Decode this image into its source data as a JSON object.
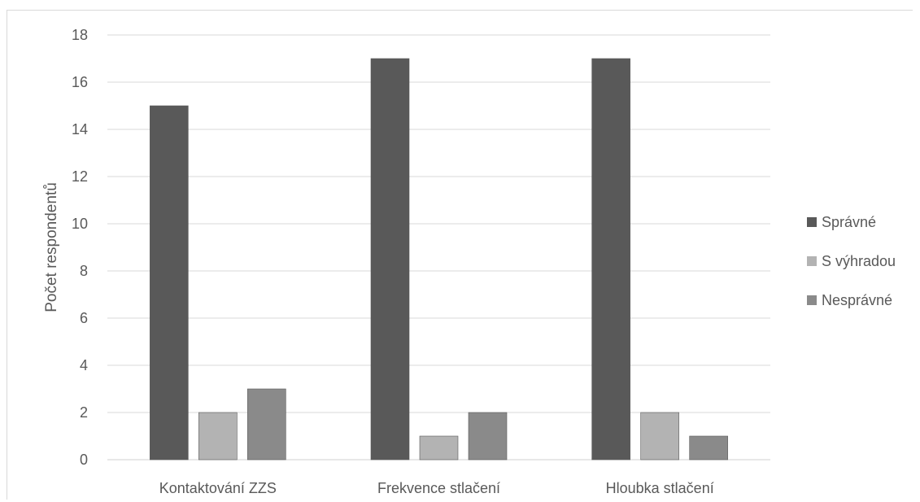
{
  "chart_data": {
    "type": "bar",
    "title": "",
    "xlabel": "",
    "ylabel": "Počet respondentů",
    "ylim": [
      0,
      18
    ],
    "yticks": [
      0,
      2,
      4,
      6,
      8,
      10,
      12,
      14,
      16,
      18
    ],
    "grid": true,
    "legend_position": "right",
    "categories": [
      "Kontaktování ZZS",
      "Frekvence stlačení",
      "Hloubka stlačení"
    ],
    "series": [
      {
        "name": "Správné",
        "values": [
          15,
          17,
          17
        ],
        "color": "#595959"
      },
      {
        "name": "S výhradou",
        "values": [
          2,
          1,
          2
        ],
        "color": "#b3b3b3"
      },
      {
        "name": "Nesprávné",
        "values": [
          3,
          2,
          1
        ],
        "color": "#8a8a8a"
      }
    ]
  }
}
